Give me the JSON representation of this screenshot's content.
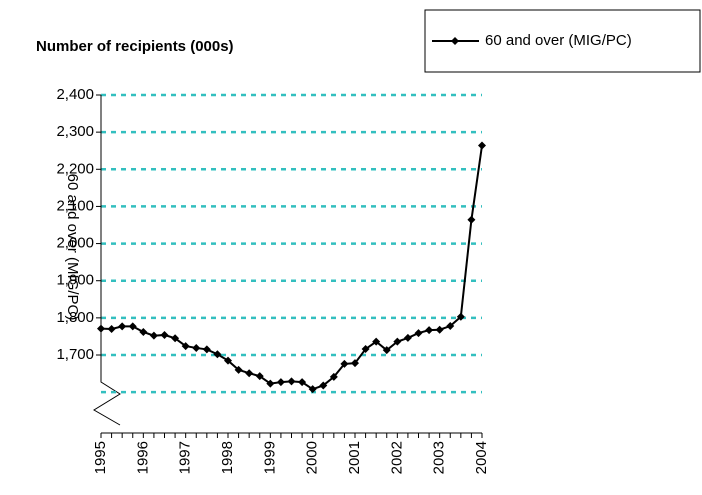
{
  "chart_data": {
    "type": "line",
    "title": "Number of recipients (000s)",
    "ylabel": "60 and over (MIG/PC)",
    "categories": [
      "1995",
      null,
      null,
      null,
      "1996",
      null,
      null,
      null,
      "1997",
      null,
      null,
      null,
      "1998",
      null,
      null,
      null,
      "1999",
      null,
      null,
      null,
      "2000",
      null,
      null,
      null,
      "2001",
      null,
      null,
      null,
      "2002",
      null,
      null,
      null,
      "2003",
      null,
      null,
      null,
      "2004"
    ],
    "series": [
      {
        "name": "60 and over (MIG/PC)",
        "color": "#000000",
        "values": [
          1771,
          1770,
          1777,
          1777,
          1762,
          1752,
          1754,
          1745,
          1724,
          1719,
          1715,
          1702,
          1685,
          1660,
          1651,
          1643,
          1623,
          1627,
          1629,
          1627,
          1608,
          1618,
          1641,
          1676,
          1678,
          1716,
          1736,
          1713,
          1736,
          1746,
          1759,
          1767,
          1768,
          1778,
          1803,
          2064,
          2264
        ]
      }
    ],
    "ylim": [
      1490,
      2400
    ],
    "yticks": [
      {
        "value": 1700,
        "label": "1,700"
      },
      {
        "value": 1800,
        "label": "1,800"
      },
      {
        "value": 1900,
        "label": "1,900"
      },
      {
        "value": 2000,
        "label": "2,000"
      },
      {
        "value": 2100,
        "label": "2,100"
      },
      {
        "value": 2200,
        "label": "2,200"
      },
      {
        "value": 2300,
        "label": "2,300"
      },
      {
        "value": 2400,
        "label": "2,400"
      }
    ],
    "minor_gridlines": [
      1600
    ],
    "grid": true,
    "grid_color": "#33bfbf",
    "legend": "top-right"
  }
}
